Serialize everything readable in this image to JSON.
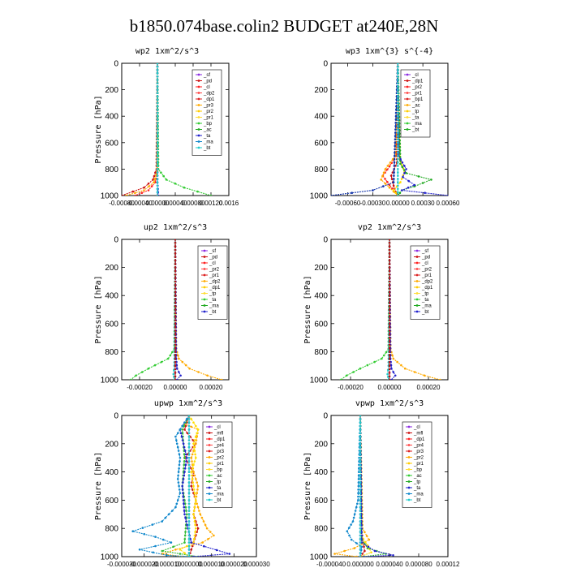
{
  "figure_title": "b1850.074base.colin2  BUDGET at240E,28N",
  "chart_data": [
    {
      "type": "line",
      "title": "wp2  1xm^2/s^3",
      "ylabel": "Pressure [hPa]",
      "ylim": [
        1000,
        0
      ],
      "yticks": [
        0,
        200,
        400,
        600,
        800,
        1000
      ],
      "xlim": [
        -0.0008,
        0.0016
      ],
      "xtick_labels": [
        "-0.00080",
        "-0.00040",
        "0.00000",
        "0.00040",
        "0.00080",
        "0.00120",
        "0.0016"
      ],
      "xtick_values": [
        -0.0008,
        -0.0004,
        0,
        0.0004,
        0.0008,
        0.0012,
        0.0016
      ],
      "legend": [
        "_sf",
        "_pd",
        "_cl",
        "_dp2",
        "_dp1",
        "_pr3",
        "_pr2",
        "_pr1",
        "_bp",
        "_ac",
        "_ta",
        "_ma",
        "_bt"
      ],
      "series": [
        {
          "name": "_sf",
          "color": "#8a2be2",
          "p": [
            0,
            800,
            900,
            950,
            1000
          ],
          "v": [
            0,
            0,
            0,
            0,
            0
          ]
        },
        {
          "name": "_pd",
          "color": "#cc1111",
          "p": [
            0,
            800,
            880,
            940,
            1000
          ],
          "v": [
            0,
            -2e-05,
            -0.0001,
            -0.0003,
            -0.0008
          ]
        },
        {
          "name": "_cl",
          "color": "#ff2222",
          "p": [
            0,
            820,
            900,
            960,
            1000
          ],
          "v": [
            0,
            0,
            -5e-05,
            -0.0002,
            -0.0005
          ]
        },
        {
          "name": "_pr3",
          "color": "#ffaa00",
          "p": [
            0,
            820,
            900,
            960,
            1000
          ],
          "v": [
            0,
            -1e-05,
            -8e-05,
            -0.0003,
            -0.0007
          ]
        },
        {
          "name": "_pr1",
          "color": "#33cc33",
          "p": [
            0,
            800,
            880,
            940,
            1000
          ],
          "v": [
            0,
            2e-05,
            0.0002,
            0.0006,
            0.0012
          ]
        },
        {
          "name": "_ac",
          "color": "#2222cc",
          "p": [
            0,
            900,
            1000
          ],
          "v": [
            0,
            0,
            2e-05
          ]
        },
        {
          "name": "_bt",
          "color": "#22cccc",
          "p": [
            0,
            1000
          ],
          "v": [
            0,
            0
          ]
        }
      ]
    },
    {
      "type": "line",
      "title": "wp3  1xm^{3} s^{-4}",
      "ylabel": "",
      "ylim": [
        1000,
        0
      ],
      "yticks": [
        0,
        200,
        400,
        600,
        800,
        1000
      ],
      "xlim": [
        -0.0008,
        0.0006
      ],
      "xtick_labels": [
        "-0.00060",
        "-0.00030",
        "0.00000",
        "0.00030",
        "0.00060"
      ],
      "xtick_values": [
        -0.0006,
        -0.0003,
        0,
        0.0003,
        0.0006
      ],
      "legend": [
        "_cl",
        "_dp1",
        "_pr2",
        "_pr1",
        "_bp1",
        "_ac",
        "_tp",
        "_ta",
        "_ma",
        "_bt"
      ],
      "series": [
        {
          "name": "_cl",
          "color": "#ff2222",
          "p": [
            0,
            700,
            780,
            850,
            920,
            1000
          ],
          "v": [
            0,
            -2e-05,
            -0.0001,
            -0.00018,
            -0.0001,
            0
          ]
        },
        {
          "name": "_dp1",
          "color": "#cc1111",
          "p": [
            0,
            750,
            850,
            950,
            1000
          ],
          "v": [
            0,
            -1e-05,
            -8e-05,
            -4e-05,
            0
          ]
        },
        {
          "name": "_pr2",
          "color": "#ffaa00",
          "p": [
            0,
            700,
            800,
            880,
            940,
            1000
          ],
          "v": [
            0,
            -3e-05,
            -0.00015,
            -0.0002,
            -0.0001,
            0
          ]
        },
        {
          "name": "_pr1",
          "color": "#ffdd00",
          "p": [
            0,
            720,
            820,
            900,
            960,
            1000
          ],
          "v": [
            0,
            2e-05,
            8e-05,
            3e-05,
            -5e-05,
            0
          ]
        },
        {
          "name": "_bp1",
          "color": "#22aa22",
          "p": [
            0,
            760,
            830,
            880,
            930,
            960,
            1000
          ],
          "v": [
            0,
            3e-05,
            0.0001,
            0.0004,
            0.0002,
            5e-05,
            0
          ]
        },
        {
          "name": "_tp",
          "color": "#2222cc",
          "p": [
            0,
            700,
            800,
            860,
            920,
            960,
            1000
          ],
          "v": [
            0,
            1e-05,
            0.0001,
            6e-05,
            0.0002,
            5e-05,
            0.0006
          ]
        },
        {
          "name": "_ta",
          "color": "#1133aa",
          "p": [
            0,
            900,
            960,
            1000
          ],
          "v": [
            0,
            -5e-05,
            -0.0003,
            -0.0008
          ]
        },
        {
          "name": "_bt",
          "color": "#22cccc",
          "p": [
            0,
            1000
          ],
          "v": [
            0,
            0
          ]
        }
      ]
    },
    {
      "type": "line",
      "title": "up2  1xm^2/s^3",
      "ylabel": "Pressure [hPa]",
      "ylim": [
        1000,
        0
      ],
      "yticks": [
        0,
        200,
        400,
        600,
        800,
        1000
      ],
      "xlim": [
        -0.0003,
        0.0003
      ],
      "xtick_labels": [
        "-0.00020",
        "0.00000",
        "0.00020"
      ],
      "xtick_values": [
        -0.0002,
        0,
        0.0002
      ],
      "legend": [
        "_sf",
        "_pd",
        "_cl",
        "_pr2",
        "_pr1",
        "_dp2",
        "_dp1",
        "_tp",
        "_ta",
        "_ma",
        "_bt"
      ],
      "series": [
        {
          "name": "_sf",
          "color": "#8a2be2",
          "p": [
            0,
            1000
          ],
          "v": [
            0,
            0
          ]
        },
        {
          "name": "_pr2",
          "color": "#ffaa00",
          "p": [
            0,
            780,
            850,
            920,
            970,
            1000
          ],
          "v": [
            0,
            5e-06,
            2e-05,
            8e-05,
            0.00018,
            0.00026
          ]
        },
        {
          "name": "_pr1",
          "color": "#33cc33",
          "p": [
            0,
            780,
            850,
            920,
            970,
            1000
          ],
          "v": [
            0,
            -5e-06,
            -4e-05,
            -0.00015,
            -0.00022,
            -0.00025
          ]
        },
        {
          "name": "_tp",
          "color": "#2222cc",
          "p": [
            0,
            850,
            920,
            970,
            1000
          ],
          "v": [
            0,
            5e-06,
            1e-05,
            3e-05,
            1e-05
          ]
        },
        {
          "name": "_ma",
          "color": "#22cccc",
          "p": [
            0,
            900,
            960,
            1000
          ],
          "v": [
            0,
            -5e-06,
            -1e-05,
            -5e-06
          ]
        },
        {
          "name": "_cl",
          "color": "#bb1111",
          "p": [
            0,
            1000
          ],
          "v": [
            0,
            0
          ]
        }
      ]
    },
    {
      "type": "line",
      "title": "vp2  1xm^2/s^3",
      "ylabel": "Pressure [hPa]",
      "ylim": [
        1000,
        0
      ],
      "yticks": [
        0,
        200,
        400,
        600,
        800,
        1000
      ],
      "xlim": [
        -0.0003,
        0.0003
      ],
      "xtick_labels": [
        "-0.00020",
        "0.00000",
        "0.00020"
      ],
      "xtick_values": [
        -0.0002,
        0,
        0.0002
      ],
      "legend": [
        "_sf",
        "_pd",
        "_cl",
        "_pr2",
        "_pr1",
        "_dp2",
        "_dp1",
        "_tp",
        "_ta",
        "_ma",
        "_bt"
      ],
      "series": [
        {
          "name": "_sf",
          "color": "#8a2be2",
          "p": [
            0,
            1000
          ],
          "v": [
            0,
            0
          ]
        },
        {
          "name": "_pr2",
          "color": "#ffaa00",
          "p": [
            0,
            780,
            850,
            920,
            970,
            1000
          ],
          "v": [
            0,
            5e-06,
            2e-05,
            8e-05,
            0.00018,
            0.00026
          ]
        },
        {
          "name": "_pr1",
          "color": "#33cc33",
          "p": [
            0,
            780,
            850,
            920,
            970,
            1000
          ],
          "v": [
            0,
            -5e-06,
            -4e-05,
            -0.00015,
            -0.00022,
            -0.00025
          ]
        },
        {
          "name": "_tp",
          "color": "#2222cc",
          "p": [
            0,
            850,
            920,
            970,
            1000
          ],
          "v": [
            0,
            5e-06,
            1e-05,
            3e-05,
            1e-05
          ]
        },
        {
          "name": "_ma",
          "color": "#22cccc",
          "p": [
            0,
            900,
            960,
            1000
          ],
          "v": [
            0,
            -5e-06,
            -1e-05,
            -5e-06
          ]
        },
        {
          "name": "_cl",
          "color": "#bb1111",
          "p": [
            0,
            1000
          ],
          "v": [
            0,
            0
          ]
        }
      ]
    },
    {
      "type": "line",
      "title": "upwp  1xm^2/s^3",
      "ylabel": "Pressure [hPa]",
      "ylim": [
        1000,
        0
      ],
      "yticks": [
        0,
        200,
        400,
        600,
        800,
        1000
      ],
      "xlim": [
        -3e-05,
        3e-05
      ],
      "xtick_labels": [
        "-0.000030",
        "-0.000020",
        "-0.000010",
        "0.000000",
        "0.000010",
        "0.000020",
        "0.000030"
      ],
      "xtick_values": [
        -3e-05,
        -2e-05,
        -1e-05,
        0,
        1e-05,
        2e-05,
        3e-05
      ],
      "legend": [
        "_cl",
        "_mfl",
        "_dp1",
        "_pr4",
        "_pr3",
        "_pr2",
        "_pr1",
        "_bp",
        "_ac",
        "_tp",
        "_ta",
        "_ma",
        "_bt"
      ],
      "series": [
        {
          "name": "_cl",
          "color": "#8a2be2",
          "p": [
            0,
            1000
          ],
          "v": [
            0,
            0
          ]
        },
        {
          "name": "_dp1",
          "color": "#cc1111",
          "p": [
            0,
            100,
            200,
            300,
            400,
            500,
            600,
            700,
            800,
            900,
            1000
          ],
          "v": [
            0,
            -2e-06,
            3e-06,
            -2e-06,
            2e-06,
            1e-06,
            3e-06,
            2e-06,
            4e-06,
            2e-06,
            0
          ]
        },
        {
          "name": "_pr3",
          "color": "#ffaa00",
          "p": [
            0,
            60,
            100,
            200,
            300,
            400,
            500,
            600,
            700,
            800,
            850,
            900,
            950,
            980,
            1000
          ],
          "v": [
            0,
            -2e-06,
            4e-06,
            3e-06,
            1e-06,
            2e-06,
            4e-06,
            3e-06,
            5e-06,
            8e-06,
            1.1e-05,
            6e-06,
            -6e-06,
            -1.2e-05,
            -3e-06
          ]
        },
        {
          "name": "_pr1",
          "color": "#ffdd00",
          "p": [
            0,
            100,
            200,
            300,
            400,
            500,
            600,
            700,
            800,
            900,
            950,
            1000
          ],
          "v": [
            0,
            4e-06,
            2e-06,
            3e-06,
            1e-06,
            2e-06,
            3e-06,
            2e-06,
            3e-06,
            2e-06,
            -4e-06,
            0
          ]
        },
        {
          "name": "_ac",
          "color": "#33bb33",
          "p": [
            0,
            100,
            300,
            500,
            700,
            900,
            960,
            1000
          ],
          "v": [
            0,
            -3e-06,
            -2e-06,
            -3e-06,
            -1e-06,
            -2e-06,
            -1.2e-05,
            4e-06
          ]
        },
        {
          "name": "_tp",
          "color": "#2222cc",
          "p": [
            0,
            100,
            300,
            500,
            700,
            900,
            980,
            1000
          ],
          "v": [
            0,
            -4e-06,
            -1e-06,
            -3e-06,
            -2e-06,
            1e-06,
            1.8e-05,
            2e-06
          ]
        },
        {
          "name": "_ta",
          "color": "#1188cc",
          "p": [
            0,
            150,
            300,
            450,
            550,
            650,
            750,
            820,
            860,
            900,
            950,
            990,
            1000
          ],
          "v": [
            0,
            -6e-06,
            -4e-06,
            -5e-06,
            -4e-06,
            -6e-06,
            -1.2e-05,
            -2.5e-05,
            -1.5e-05,
            -8e-06,
            -2.2e-05,
            -1e-05,
            0
          ]
        },
        {
          "name": "_bt",
          "color": "#22cccc",
          "p": [
            0,
            1000
          ],
          "v": [
            0,
            0
          ]
        }
      ]
    },
    {
      "type": "line",
      "title": "vpwp  1xm^2/s^3",
      "ylabel": "Pressure [hPa]",
      "ylim": [
        1000,
        0
      ],
      "yticks": [
        0,
        200,
        400,
        600,
        800,
        1000
      ],
      "xlim": [
        -4e-05,
        0.00012
      ],
      "xtick_labels": [
        "-0.000040",
        "0.000000",
        "0.000040",
        "0.000080",
        "0.00012"
      ],
      "xtick_values": [
        -4e-05,
        0,
        4e-05,
        8e-05,
        0.00012
      ],
      "legend": [
        "_cl",
        "_mfl",
        "_dp1",
        "_pr4",
        "_pr3",
        "_pr2",
        "_pr1",
        "_bp",
        "_ac",
        "_tp",
        "_ta",
        "_ma",
        "_bt"
      ],
      "series": [
        {
          "name": "_cl",
          "color": "#8a2be2",
          "p": [
            0,
            1000
          ],
          "v": [
            0,
            0
          ]
        },
        {
          "name": "_dp1",
          "color": "#cc1111",
          "p": [
            0,
            800,
            900,
            960,
            1000
          ],
          "v": [
            0,
            1e-06,
            4e-06,
            6e-06,
            0
          ]
        },
        {
          "name": "_pr3",
          "color": "#ffaa00",
          "p": [
            0,
            800,
            880,
            940,
            980,
            1000
          ],
          "v": [
            0,
            3e-06,
            1.2e-05,
            -8e-06,
            -3.5e-05,
            -5e-06
          ]
        },
        {
          "name": "_pr1",
          "color": "#ffdd00",
          "p": [
            0,
            850,
            920,
            970,
            1000
          ],
          "v": [
            0,
            1e-06,
            1e-05,
            1.5e-05,
            0
          ]
        },
        {
          "name": "_ac",
          "color": "#33bb33",
          "p": [
            0,
            880,
            940,
            980,
            1000
          ],
          "v": [
            0,
            2e-06,
            1e-05,
            3.5e-05,
            5e-06
          ]
        },
        {
          "name": "_tp",
          "color": "#2222cc",
          "p": [
            0,
            900,
            960,
            990,
            1000
          ],
          "v": [
            0,
            2e-06,
            2e-05,
            4.5e-05,
            5e-06
          ]
        },
        {
          "name": "_ta",
          "color": "#1188cc",
          "p": [
            0,
            600,
            750,
            820,
            880,
            930,
            1000
          ],
          "v": [
            0,
            -3e-06,
            -1e-05,
            -1.8e-05,
            -1.2e-05,
            2e-06,
            0
          ]
        },
        {
          "name": "_bt",
          "color": "#22cccc",
          "p": [
            0,
            1000
          ],
          "v": [
            0,
            0
          ]
        }
      ]
    }
  ]
}
